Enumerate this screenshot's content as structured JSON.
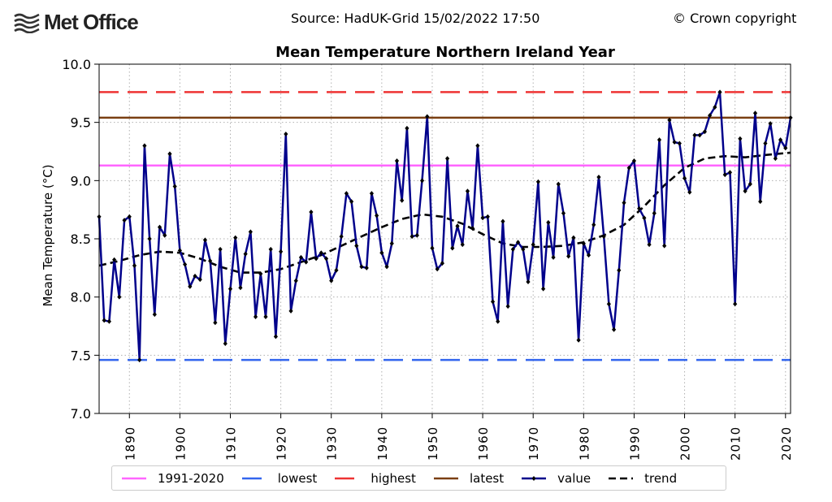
{
  "header": {
    "logo_text": "Met Office",
    "source": "Source: HadUK-Grid 15/02/2022 17:50",
    "copyright": "© Crown copyright"
  },
  "chart_data": {
    "type": "line",
    "title": "Mean Temperature Northern Ireland Year",
    "xlabel": "",
    "ylabel": "Mean Temperature (°C)",
    "xlim": [
      1884,
      2021
    ],
    "ylim": [
      7.0,
      10.0
    ],
    "grid": true,
    "x_ticks": [
      1890,
      1900,
      1910,
      1920,
      1930,
      1940,
      1950,
      1960,
      1970,
      1980,
      1990,
      2000,
      2010,
      2020
    ],
    "y_ticks": [
      "7.0",
      "7.5",
      "8.0",
      "8.5",
      "9.0",
      "9.5",
      "10.0"
    ],
    "legend_position": "bottom",
    "reference_lines": [
      {
        "name": "1991-2020",
        "value": 9.13,
        "color": "#ff66ff",
        "style": "solid"
      },
      {
        "name": "lowest",
        "value": 7.46,
        "color": "#3366ee",
        "style": "dashed"
      },
      {
        "name": "highest",
        "value": 9.76,
        "color": "#ee3333",
        "style": "dashed"
      },
      {
        "name": "latest",
        "value": 9.54,
        "color": "#7a3f12",
        "style": "solid"
      }
    ],
    "series": [
      {
        "name": "value",
        "color": "#00008b",
        "marker": "diamond",
        "x_start": 1884,
        "values": [
          8.69,
          7.8,
          7.79,
          8.32,
          8.0,
          8.66,
          8.69,
          8.27,
          7.46,
          9.3,
          8.5,
          7.85,
          8.6,
          8.53,
          9.23,
          8.95,
          8.4,
          8.28,
          8.09,
          8.18,
          8.15,
          8.49,
          8.31,
          7.78,
          8.41,
          7.6,
          8.07,
          8.51,
          8.08,
          8.37,
          8.56,
          7.83,
          8.2,
          7.83,
          8.41,
          7.66,
          8.39,
          9.4,
          7.88,
          8.14,
          8.34,
          8.3,
          8.73,
          8.33,
          8.38,
          8.33,
          8.14,
          8.23,
          8.52,
          8.89,
          8.82,
          8.44,
          8.26,
          8.25,
          8.89,
          8.7,
          8.38,
          8.26,
          8.46,
          9.17,
          8.83,
          9.45,
          8.52,
          8.53,
          9.0,
          9.55,
          8.42,
          8.24,
          8.29,
          9.19,
          8.42,
          8.61,
          8.45,
          8.91,
          8.59,
          9.3,
          8.68,
          8.69,
          7.96,
          7.79,
          8.65,
          7.92,
          8.41,
          8.47,
          8.41,
          8.13,
          8.45,
          8.99,
          8.07,
          8.64,
          8.34,
          8.97,
          8.72,
          8.35,
          8.51,
          7.63,
          8.46,
          8.36,
          8.62,
          9.03,
          8.52,
          7.94,
          7.72,
          8.23,
          8.81,
          9.11,
          9.17,
          8.76,
          8.68,
          8.45,
          8.72,
          9.35,
          8.44,
          9.52,
          9.33,
          9.32,
          9.02,
          8.9,
          9.39,
          9.39,
          9.42,
          9.56,
          9.63,
          9.76,
          9.05,
          9.07,
          7.94,
          9.36,
          8.91,
          8.97,
          9.58,
          8.82,
          9.32,
          9.49,
          9.19,
          9.35,
          9.28,
          9.54
        ]
      },
      {
        "name": "trend",
        "color": "#000000",
        "style": "dashed",
        "x": [
          1884,
          1888,
          1892,
          1896,
          1900,
          1904,
          1908,
          1912,
          1916,
          1920,
          1924,
          1928,
          1932,
          1936,
          1940,
          1944,
          1948,
          1952,
          1956,
          1960,
          1964,
          1968,
          1972,
          1976,
          1980,
          1984,
          1988,
          1992,
          1996,
          2000,
          2004,
          2008,
          2012,
          2016,
          2021
        ],
        "values": [
          8.27,
          8.31,
          8.36,
          8.39,
          8.38,
          8.33,
          8.26,
          8.21,
          8.21,
          8.24,
          8.3,
          8.36,
          8.44,
          8.52,
          8.6,
          8.67,
          8.71,
          8.69,
          8.63,
          8.54,
          8.46,
          8.43,
          8.43,
          8.44,
          8.47,
          8.53,
          8.62,
          8.78,
          8.96,
          9.11,
          9.19,
          9.21,
          9.2,
          9.22,
          9.24
        ]
      }
    ],
    "legend": [
      "1991-2020",
      "lowest",
      "highest",
      "latest",
      "value",
      "trend"
    ]
  }
}
